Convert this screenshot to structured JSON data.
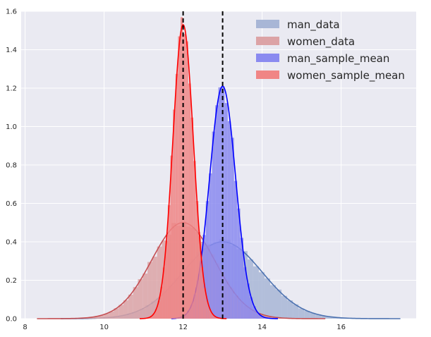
{
  "chart_data": {
    "type": "area",
    "title": "",
    "xlabel": "",
    "ylabel": "",
    "xlim": [
      7.9,
      17.9
    ],
    "ylim": [
      0,
      1.6
    ],
    "xticks": [
      "8",
      "10",
      "12",
      "14",
      "16"
    ],
    "xtick_values": [
      8,
      10,
      12,
      14,
      16
    ],
    "yticks": [
      "0.0",
      "0.2",
      "0.4",
      "0.6",
      "0.8",
      "1.0",
      "1.2",
      "1.4",
      "1.6"
    ],
    "ytick_values": [
      0,
      0.2,
      0.4,
      0.6,
      0.8,
      1.0,
      1.2,
      1.4,
      1.6
    ],
    "grid": true,
    "legend_position": "top-right",
    "background": "#eaeaf2",
    "series": [
      {
        "name": "man_data",
        "color": "#4c72b0",
        "fill": "#a8b6d6",
        "mean": 13.0,
        "sd": 1.0,
        "x_range": [
          8.9,
          17.5
        ],
        "peak": 0.4
      },
      {
        "name": "women_data",
        "color": "#c44e52",
        "fill": "#dca3a6",
        "mean": 12.0,
        "sd": 0.8,
        "x_range": [
          8.3,
          15.6
        ],
        "peak": 0.5
      },
      {
        "name": "man_sample_mean",
        "color": "#0000ff",
        "fill": "#8a8af0",
        "mean": 13.0,
        "sd": 0.33,
        "x_range": [
          11.7,
          14.4
        ],
        "peak": 1.21
      },
      {
        "name": "women_sample_mean",
        "color": "#ff0000",
        "fill": "#f08585",
        "mean": 12.0,
        "sd": 0.26,
        "x_range": [
          10.9,
          13.1
        ],
        "peak": 1.53
      }
    ],
    "vlines": [
      {
        "x": 12.0,
        "style": "dashed",
        "color": "#000000"
      },
      {
        "x": 13.0,
        "style": "dashed",
        "color": "#000000"
      }
    ]
  }
}
